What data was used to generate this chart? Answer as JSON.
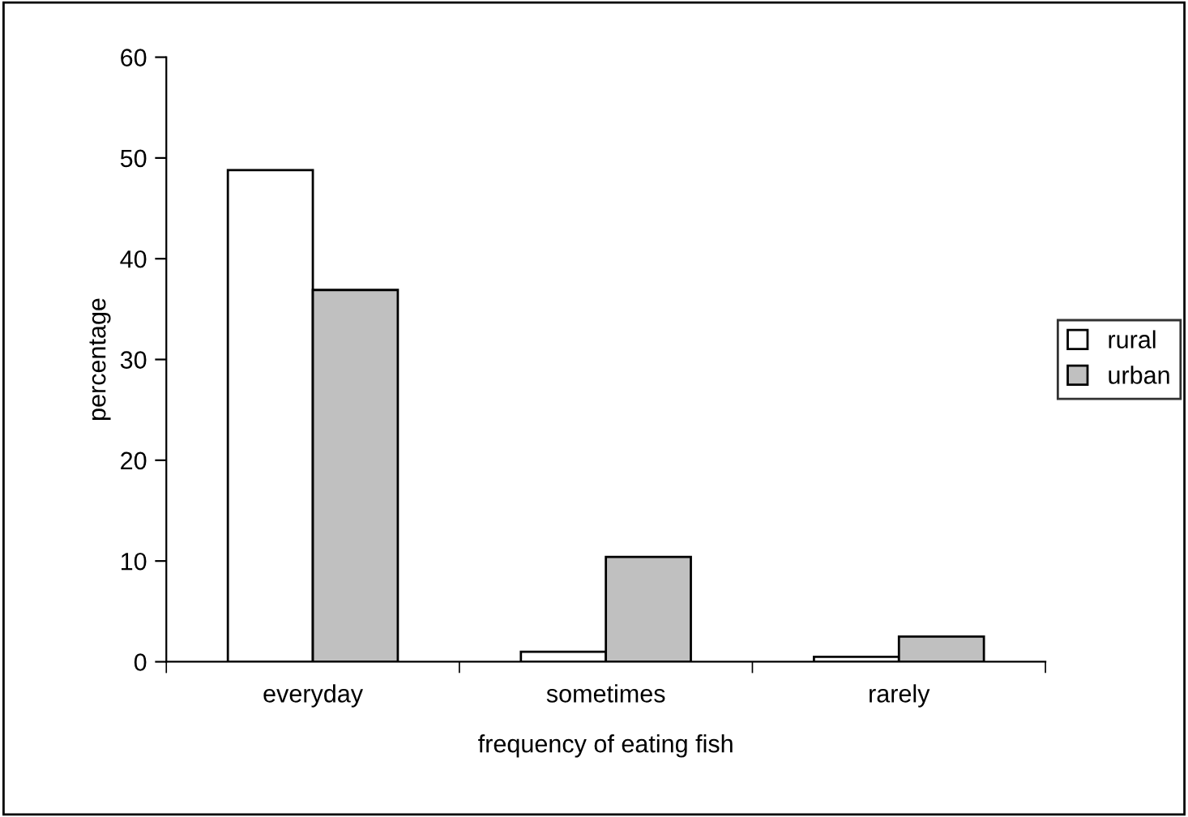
{
  "chart_data": {
    "type": "bar",
    "xlabel": "frequency of eating fish",
    "ylabel": "percentage",
    "categories": [
      "everyday",
      "sometimes",
      "rarely"
    ],
    "series": [
      {
        "name": "rural",
        "color": "#ffffff",
        "values": [
          48.8,
          1.0,
          0.5
        ]
      },
      {
        "name": "urban",
        "color": "#c0c0c0",
        "values": [
          36.9,
          10.4,
          2.5
        ]
      }
    ],
    "ylim": [
      0,
      60
    ],
    "yticks": [
      0,
      10,
      20,
      30,
      40,
      50,
      60
    ],
    "grid": false,
    "legend": "right"
  }
}
